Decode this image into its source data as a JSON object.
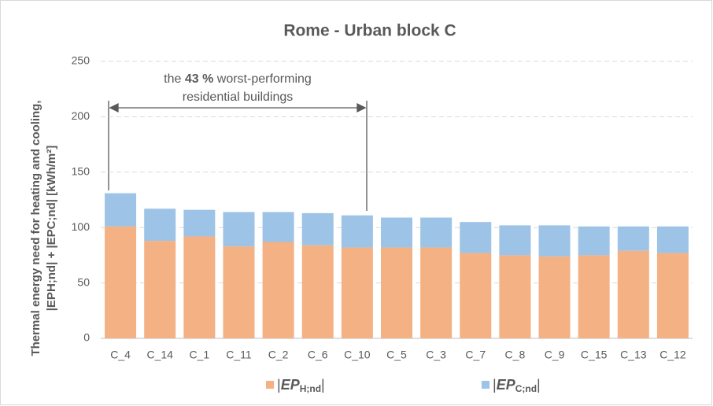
{
  "chart_data": {
    "type": "stacked_bar",
    "title": "Rome - Urban block C",
    "ylabel": [
      "Thermal energy need for heating and cooling,",
      "|EPH;nd| + |EPC;nd| [kWh/m²]"
    ],
    "categories": [
      "C_4",
      "C_14",
      "C_1",
      "C_11",
      "C_2",
      "C_6",
      "C_10",
      "C_5",
      "C_3",
      "C_7",
      "C_8",
      "C_9",
      "C_15",
      "C_13",
      "C_12"
    ],
    "series": [
      {
        "name": "|EPH;nd|",
        "color": "#f4b183",
        "values": [
          101,
          88,
          92,
          83,
          87,
          84,
          82,
          82,
          82,
          77,
          75,
          74,
          75,
          79,
          77
        ]
      },
      {
        "name": "|EPC;nd|",
        "color": "#9dc3e6",
        "values": [
          30,
          29,
          24,
          31,
          27,
          29,
          29,
          27,
          27,
          28,
          27,
          28,
          26,
          22,
          24
        ]
      }
    ],
    "ylim": [
      0,
      250
    ],
    "yticks": [
      0,
      50,
      100,
      150,
      200,
      250
    ],
    "grid": true,
    "legend": "bottom",
    "annotation": {
      "line1": [
        "the ",
        "43 %",
        " worst-performing"
      ],
      "line2": "residential buildings"
    }
  }
}
